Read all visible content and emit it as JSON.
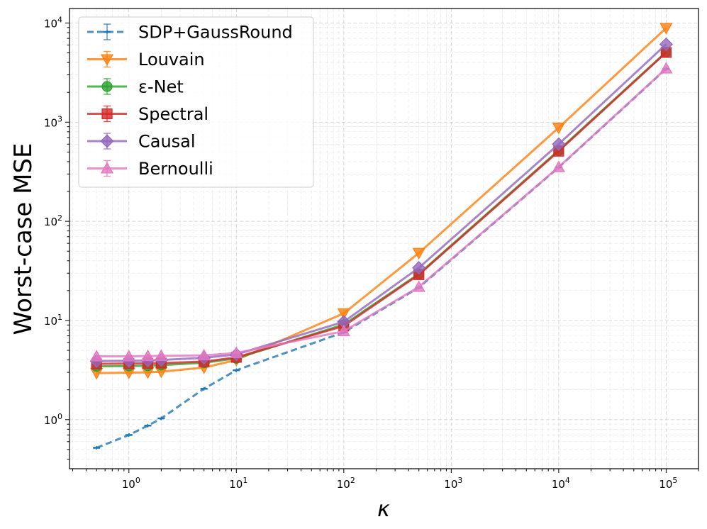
{
  "chart_data": {
    "type": "line",
    "xscale": "log",
    "yscale": "log",
    "xlim": [
      0.28,
      200000
    ],
    "ylim": [
      0.32,
      14000
    ],
    "xlabel": "κ",
    "ylabel": "Worst-case MSE",
    "grid": true,
    "legend_position": "top-left",
    "x_tick_labels": [
      {
        "base": "10",
        "exp": "0",
        "value": 1
      },
      {
        "base": "10",
        "exp": "1",
        "value": 10
      },
      {
        "base": "10",
        "exp": "2",
        "value": 100
      },
      {
        "base": "10",
        "exp": "3",
        "value": 1000
      },
      {
        "base": "10",
        "exp": "4",
        "value": 10000
      },
      {
        "base": "10",
        "exp": "5",
        "value": 100000
      }
    ],
    "y_tick_labels": [
      {
        "base": "10",
        "exp": "0",
        "value": 1
      },
      {
        "base": "10",
        "exp": "1",
        "value": 10
      },
      {
        "base": "10",
        "exp": "2",
        "value": 100
      },
      {
        "base": "10",
        "exp": "3",
        "value": 1000
      },
      {
        "base": "10",
        "exp": "4",
        "value": 10000
      }
    ],
    "series": [
      {
        "name": "SDP+GaussRound",
        "color": "#1f77b4",
        "marker": "errorbar",
        "dashed": true,
        "x": [
          0.5,
          1,
          1.5,
          2,
          5,
          10,
          100,
          500,
          10000,
          100000
        ],
        "y": [
          0.52,
          0.7,
          0.87,
          1.03,
          2.05,
          3.15,
          7.6,
          21.5,
          350,
          3450
        ]
      },
      {
        "name": "Louvain",
        "color": "#ff7f0e",
        "marker": "triangle-down",
        "dashed": false,
        "x": [
          0.5,
          1,
          1.5,
          2,
          5,
          10,
          100,
          500,
          10000,
          100000
        ],
        "y": [
          2.95,
          2.98,
          3.0,
          3.05,
          3.35,
          4.0,
          11.8,
          48,
          880,
          8900
        ]
      },
      {
        "name": "ε-Net",
        "color": "#2ca02c",
        "marker": "circle",
        "dashed": false,
        "x": [
          0.5,
          1,
          1.5,
          2,
          5,
          10,
          100,
          500,
          10000,
          100000
        ],
        "y": [
          3.45,
          3.48,
          3.5,
          3.55,
          3.75,
          4.15,
          9.1,
          29.5,
          520,
          5100
        ]
      },
      {
        "name": "Spectral",
        "color": "#d62728",
        "marker": "square",
        "dashed": false,
        "x": [
          0.5,
          1,
          1.5,
          2,
          5,
          10,
          100,
          500,
          10000,
          100000
        ],
        "y": [
          3.65,
          3.68,
          3.7,
          3.72,
          3.85,
          4.25,
          8.8,
          29,
          510,
          5050
        ]
      },
      {
        "name": "Causal",
        "color": "#9467bd",
        "marker": "diamond",
        "dashed": false,
        "x": [
          0.5,
          1,
          1.5,
          2,
          5,
          10,
          100,
          500,
          10000,
          100000
        ],
        "y": [
          3.9,
          3.92,
          3.95,
          4.0,
          4.2,
          4.55,
          9.7,
          34,
          600,
          6100
        ]
      },
      {
        "name": "Bernoulli",
        "color": "#e377c2",
        "marker": "triangle-up",
        "dashed": false,
        "x": [
          0.5,
          1,
          1.5,
          2,
          5,
          10,
          100,
          500,
          10000,
          100000
        ],
        "y": [
          4.35,
          4.35,
          4.38,
          4.4,
          4.45,
          4.7,
          7.8,
          21.8,
          352,
          3480
        ]
      }
    ]
  }
}
